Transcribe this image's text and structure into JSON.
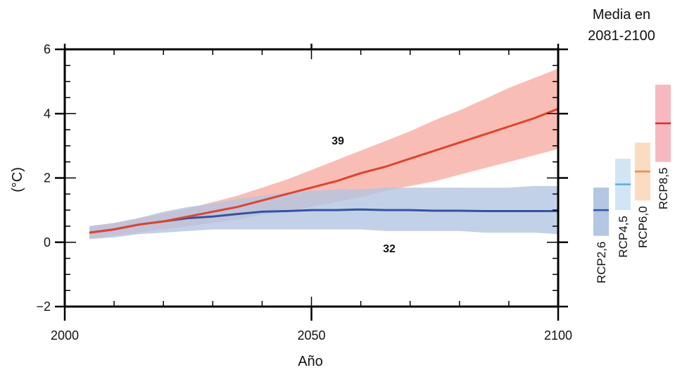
{
  "chart_data": {
    "type": "area",
    "xlabel": "Año",
    "ylabel": "(°C)",
    "xlim": [
      2000,
      2100
    ],
    "ylim": [
      -2,
      6
    ],
    "x_ticks": [
      "2000",
      "2050",
      "2100"
    ],
    "y_ticks": [
      "6",
      "4",
      "2",
      "0",
      "−2"
    ],
    "grid": false,
    "series": [
      {
        "name": "RCP8,5",
        "color": "#e8402a",
        "band_color": "#f7b3a8",
        "model_count": "39",
        "x": [
          2005,
          2010,
          2015,
          2020,
          2025,
          2030,
          2035,
          2040,
          2045,
          2050,
          2055,
          2060,
          2065,
          2070,
          2075,
          2080,
          2085,
          2090,
          2095,
          2100
        ],
        "mean": [
          0.3,
          0.4,
          0.55,
          0.65,
          0.8,
          0.95,
          1.1,
          1.3,
          1.5,
          1.7,
          1.9,
          2.15,
          2.35,
          2.6,
          2.85,
          3.1,
          3.35,
          3.6,
          3.85,
          4.15
        ],
        "low": [
          0.1,
          0.2,
          0.3,
          0.4,
          0.5,
          0.6,
          0.7,
          0.85,
          0.95,
          1.1,
          1.25,
          1.4,
          1.6,
          1.75,
          1.9,
          2.1,
          2.3,
          2.5,
          2.7,
          2.9
        ],
        "high": [
          0.5,
          0.6,
          0.75,
          0.9,
          1.05,
          1.25,
          1.45,
          1.7,
          1.95,
          2.25,
          2.55,
          2.85,
          3.15,
          3.45,
          3.8,
          4.1,
          4.45,
          4.8,
          5.1,
          5.4
        ]
      },
      {
        "name": "RCP2,6",
        "color": "#2e55a5",
        "band_color": "#b3c6e2",
        "model_count": "32",
        "x": [
          2005,
          2010,
          2015,
          2020,
          2025,
          2030,
          2035,
          2040,
          2045,
          2050,
          2055,
          2060,
          2065,
          2070,
          2075,
          2080,
          2085,
          2090,
          2095,
          2100
        ],
        "mean": [
          0.3,
          0.4,
          0.55,
          0.65,
          0.75,
          0.8,
          0.88,
          0.95,
          0.97,
          1.0,
          1.0,
          1.02,
          1.0,
          1.0,
          0.98,
          0.98,
          0.97,
          0.97,
          0.97,
          0.97
        ],
        "low": [
          0.1,
          0.15,
          0.25,
          0.3,
          0.35,
          0.4,
          0.4,
          0.4,
          0.4,
          0.4,
          0.4,
          0.4,
          0.35,
          0.35,
          0.35,
          0.35,
          0.3,
          0.3,
          0.3,
          0.25
        ],
        "high": [
          0.5,
          0.6,
          0.75,
          0.95,
          1.1,
          1.2,
          1.35,
          1.45,
          1.55,
          1.6,
          1.65,
          1.65,
          1.7,
          1.7,
          1.7,
          1.7,
          1.7,
          1.7,
          1.75,
          1.75
        ]
      }
    ],
    "side_panel": {
      "title_line1": "Media en",
      "title_line2": "2081-2100",
      "bars": [
        {
          "name": "RCP2,6",
          "mean": 1.0,
          "low": 0.2,
          "high": 1.7,
          "fill": "#b3c6e2",
          "line": "#2e55a5"
        },
        {
          "name": "RCP4,5",
          "mean": 1.8,
          "low": 1.0,
          "high": 2.6,
          "fill": "#d2e5f5",
          "line": "#5aaee0"
        },
        {
          "name": "RCP6,0",
          "mean": 2.2,
          "low": 1.3,
          "high": 3.1,
          "fill": "#fbdcc3",
          "line": "#ec8a45"
        },
        {
          "name": "RCP8,5",
          "mean": 3.7,
          "low": 2.5,
          "high": 4.9,
          "fill": "#f7b8bf",
          "line": "#e02a2a"
        }
      ]
    }
  }
}
